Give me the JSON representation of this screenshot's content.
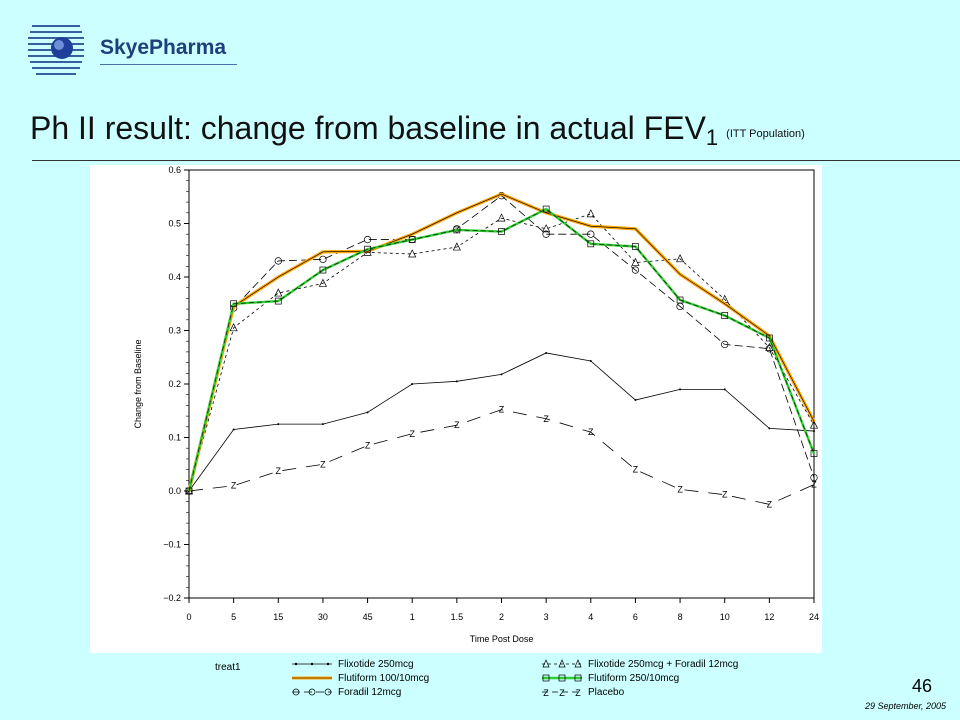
{
  "header": {
    "logo_text": "SkyePharma",
    "title_main": "Ph II result: change from baseline in actual FEV",
    "title_sub": "1",
    "title_note": "(ITT Population)"
  },
  "footer": {
    "slide_number": "46",
    "date": "29 September, 2005"
  },
  "legend": {
    "title": "treat1"
  },
  "colors": {
    "background": "#ccffff",
    "flutiform_100": "#ffa500",
    "flutiform_250": "#33cc33"
  },
  "chart_data": {
    "type": "line",
    "xlabel": "Time Post Dose",
    "ylabel": "Change from Baseline",
    "categories": [
      "0",
      "5",
      "15",
      "30",
      "45",
      "1",
      "1.5",
      "2",
      "3",
      "4",
      "6",
      "8",
      "10",
      "12",
      "24"
    ],
    "ylim": [
      -0.2,
      0.6
    ],
    "yticks": [
      "0.6",
      "0.5",
      "0.4",
      "0.3",
      "0.2",
      "0.1",
      "0.0",
      "−0.1",
      "−0.2"
    ],
    "grid": false,
    "legend_position": "bottom",
    "series": [
      {
        "name": "Flixotide 250mcg",
        "marker": "dot",
        "color": "#000000",
        "values": [
          0.0,
          0.115,
          0.125,
          0.125,
          0.147,
          0.2,
          0.205,
          0.218,
          0.258,
          0.243,
          0.17,
          0.19,
          0.19,
          0.117,
          0.112
        ]
      },
      {
        "name": "Flixotide 250mcg + Foradil 12mcg",
        "marker": "triangle",
        "color": "#000000",
        "values": [
          0.0,
          0.305,
          0.37,
          0.388,
          0.446,
          0.443,
          0.456,
          0.51,
          0.49,
          0.518,
          0.427,
          0.434,
          0.358,
          0.268,
          0.123
        ]
      },
      {
        "name": "Flutiform 100/10mcg",
        "marker": "none",
        "color": "#ffa500",
        "values": [
          0.0,
          0.345,
          0.4,
          0.447,
          0.448,
          0.48,
          0.52,
          0.555,
          0.52,
          0.495,
          0.49,
          0.405,
          0.35,
          0.29,
          0.13
        ]
      },
      {
        "name": "Flutiform 250/10mcg",
        "marker": "square",
        "color": "#33cc33",
        "values": [
          0.0,
          0.35,
          0.355,
          0.413,
          0.452,
          0.47,
          0.488,
          0.485,
          0.527,
          0.462,
          0.457,
          0.357,
          0.328,
          0.286,
          0.07
        ]
      },
      {
        "name": "Foradil 12mcg",
        "marker": "circle",
        "color": "#000000",
        "values": [
          0.0,
          0.342,
          0.43,
          0.433,
          0.47,
          0.47,
          0.49,
          0.552,
          0.48,
          0.48,
          0.413,
          0.345,
          0.274,
          0.266,
          0.025
        ]
      },
      {
        "name": "Placebo",
        "marker": "Z",
        "color": "#000000",
        "values": [
          0.0,
          0.01,
          0.037,
          0.05,
          0.085,
          0.107,
          0.123,
          0.152,
          0.135,
          0.11,
          0.04,
          0.003,
          -0.007,
          -0.025,
          0.012
        ]
      }
    ]
  }
}
